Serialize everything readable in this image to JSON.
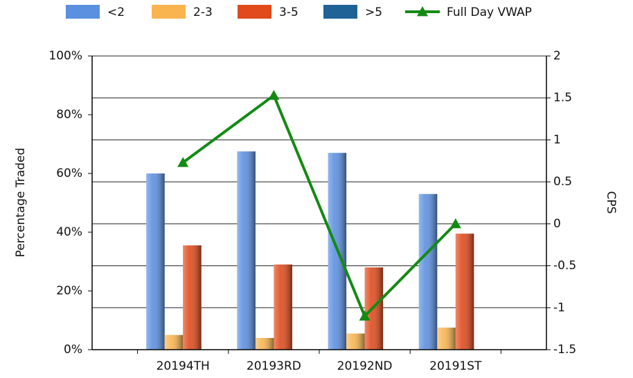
{
  "chart_data": {
    "type": "bar",
    "categories": [
      "20194TH",
      "20193RD",
      "20192ND",
      "20191ST"
    ],
    "series": [
      {
        "name": "<2",
        "color": "#5b8fe0",
        "values": [
          60,
          67.5,
          67,
          53
        ]
      },
      {
        "name": "2-3",
        "color": "#f9b450",
        "values": [
          5,
          4,
          5.5,
          7.5
        ]
      },
      {
        "name": "3-5",
        "color": "#e04a1c",
        "values": [
          35.5,
          29,
          28,
          39.5
        ]
      },
      {
        "name": ">5",
        "color": "#1f6396",
        "values": [
          0,
          0,
          0,
          0
        ]
      },
      {
        "name": "Full Day VWAP",
        "color": "#138a13",
        "type": "line",
        "axis": "y2",
        "values": [
          0.73,
          1.53,
          -1.1,
          0
        ]
      }
    ],
    "y_label": "Percentage Traded",
    "y2_label": "CPS",
    "ylim": [
      0,
      100
    ],
    "yticks": [
      {
        "value": 0,
        "label": "0%"
      },
      {
        "value": 20,
        "label": "20%"
      },
      {
        "value": 40,
        "label": "40%"
      },
      {
        "value": 60,
        "label": "60%"
      },
      {
        "value": 80,
        "label": "80%"
      },
      {
        "value": 100,
        "label": "100%"
      }
    ],
    "y2lim": [
      -1.5,
      2
    ],
    "y2ticks": [
      -1.5,
      -1,
      -0.5,
      0,
      0.5,
      1,
      1.5,
      2
    ],
    "grid": true,
    "legend": "top"
  }
}
